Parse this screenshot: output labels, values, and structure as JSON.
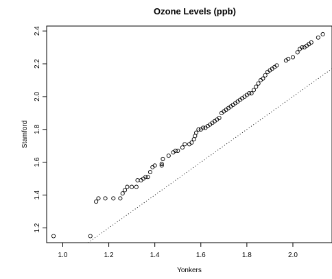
{
  "chart_data": {
    "type": "scatter",
    "title": "Ozone Levels (ppb)",
    "xlabel": "Yonkers",
    "ylabel": "Stamford",
    "xlim": [
      0.93,
      2.17
    ],
    "ylim": [
      1.11,
      2.43
    ],
    "x_ticks": [
      "1.0",
      "1.2",
      "1.4",
      "1.6",
      "1.8",
      "2.0"
    ],
    "y_ticks": [
      "1.2",
      "1.4",
      "1.6",
      "1.8",
      "2.0",
      "2.2",
      "2.4"
    ],
    "grid": false,
    "legend": "none",
    "reference_line": {
      "intercept": 0,
      "slope": 1,
      "style": "dotted"
    },
    "points": [
      [
        0.96,
        1.15
      ],
      [
        1.12,
        1.15
      ],
      [
        1.145,
        1.36
      ],
      [
        1.155,
        1.38
      ],
      [
        1.185,
        1.38
      ],
      [
        1.22,
        1.38
      ],
      [
        1.25,
        1.38
      ],
      [
        1.26,
        1.41
      ],
      [
        1.27,
        1.43
      ],
      [
        1.28,
        1.45
      ],
      [
        1.3,
        1.45
      ],
      [
        1.32,
        1.45
      ],
      [
        1.325,
        1.49
      ],
      [
        1.34,
        1.49
      ],
      [
        1.35,
        1.5
      ],
      [
        1.36,
        1.51
      ],
      [
        1.37,
        1.51
      ],
      [
        1.38,
        1.54
      ],
      [
        1.39,
        1.57
      ],
      [
        1.4,
        1.58
      ],
      [
        1.43,
        1.58
      ],
      [
        1.43,
        1.59
      ],
      [
        1.435,
        1.62
      ],
      [
        1.46,
        1.64
      ],
      [
        1.48,
        1.66
      ],
      [
        1.49,
        1.67
      ],
      [
        1.5,
        1.67
      ],
      [
        1.52,
        1.69
      ],
      [
        1.53,
        1.71
      ],
      [
        1.55,
        1.71
      ],
      [
        1.56,
        1.72
      ],
      [
        1.57,
        1.74
      ],
      [
        1.575,
        1.76
      ],
      [
        1.58,
        1.78
      ],
      [
        1.59,
        1.8
      ],
      [
        1.6,
        1.8
      ],
      [
        1.61,
        1.81
      ],
      [
        1.62,
        1.81
      ],
      [
        1.63,
        1.82
      ],
      [
        1.64,
        1.83
      ],
      [
        1.65,
        1.84
      ],
      [
        1.66,
        1.85
      ],
      [
        1.67,
        1.86
      ],
      [
        1.68,
        1.87
      ],
      [
        1.69,
        1.9
      ],
      [
        1.7,
        1.91
      ],
      [
        1.71,
        1.92
      ],
      [
        1.72,
        1.93
      ],
      [
        1.73,
        1.94
      ],
      [
        1.74,
        1.95
      ],
      [
        1.75,
        1.96
      ],
      [
        1.76,
        1.97
      ],
      [
        1.77,
        1.98
      ],
      [
        1.78,
        1.99
      ],
      [
        1.79,
        2.0
      ],
      [
        1.8,
        2.01
      ],
      [
        1.81,
        2.02
      ],
      [
        1.82,
        2.02
      ],
      [
        1.83,
        2.04
      ],
      [
        1.84,
        2.06
      ],
      [
        1.85,
        2.08
      ],
      [
        1.86,
        2.1
      ],
      [
        1.87,
        2.11
      ],
      [
        1.88,
        2.13
      ],
      [
        1.89,
        2.15
      ],
      [
        1.9,
        2.16
      ],
      [
        1.91,
        2.17
      ],
      [
        1.92,
        2.18
      ],
      [
        1.93,
        2.19
      ],
      [
        1.97,
        2.22
      ],
      [
        1.98,
        2.23
      ],
      [
        2.0,
        2.24
      ],
      [
        2.02,
        2.27
      ],
      [
        2.03,
        2.29
      ],
      [
        2.04,
        2.3
      ],
      [
        2.05,
        2.3
      ],
      [
        2.06,
        2.31
      ],
      [
        2.07,
        2.32
      ],
      [
        2.08,
        2.33
      ],
      [
        2.11,
        2.36
      ],
      [
        2.13,
        2.38
      ]
    ]
  }
}
